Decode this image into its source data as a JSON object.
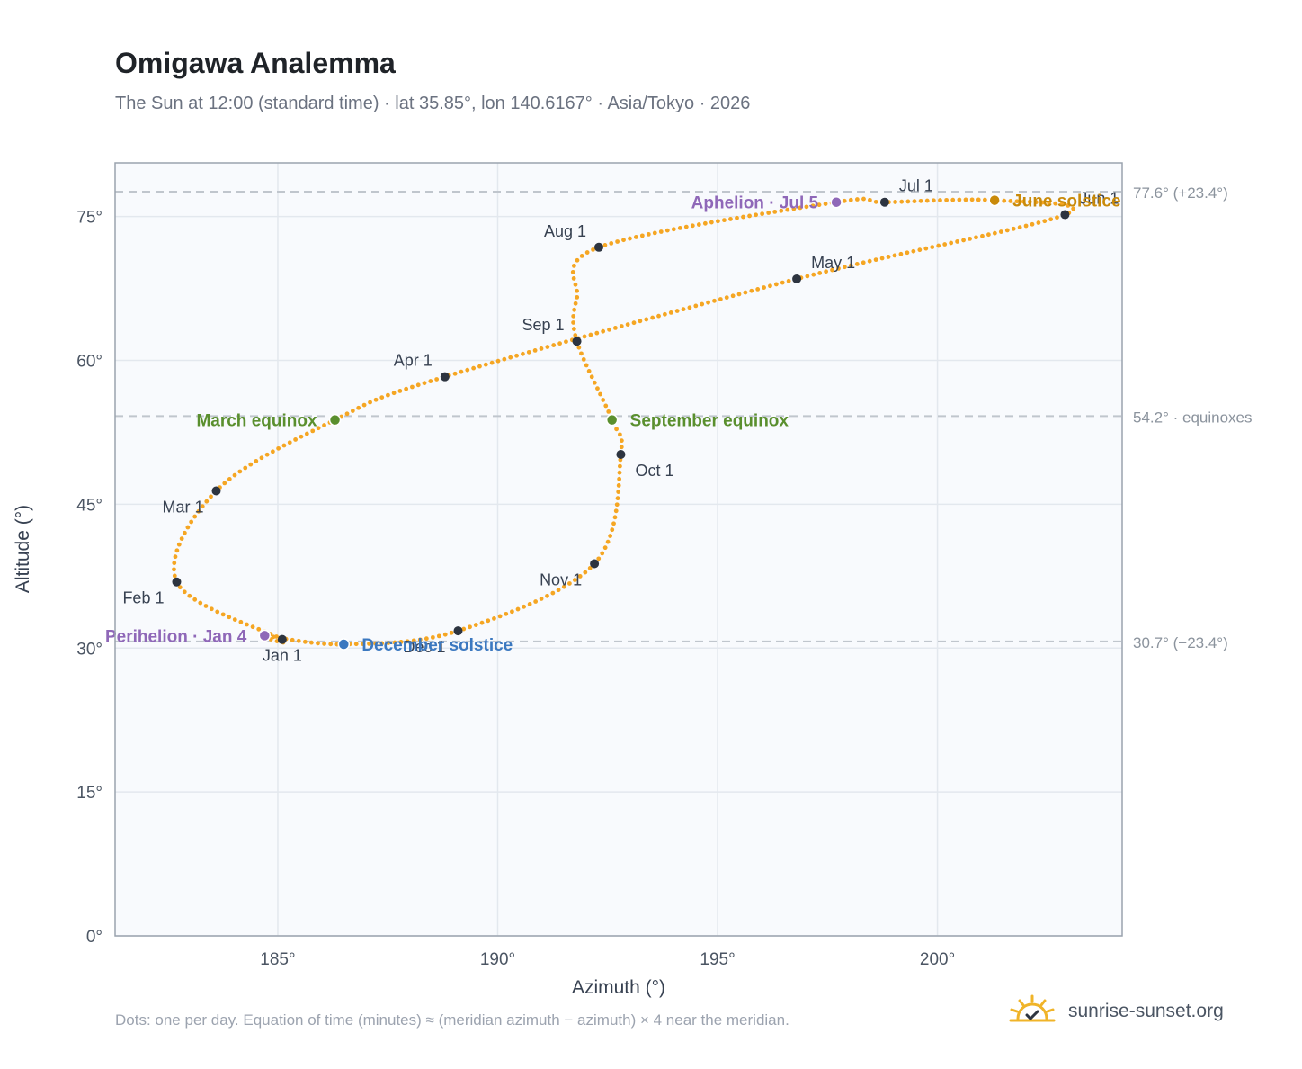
{
  "header": {
    "title": "Omigawa Analemma",
    "subtitle": "The Sun at 12:00 (standard time) · lat 35.85°, lon 140.6167° · Asia/Tokyo · 2026"
  },
  "footer": {
    "note": "Dots: one per day. Equation of time (minutes) ≈ (meridian azimuth − azimuth) × 4 near the meridian.",
    "brand": "sunrise-sunset.org"
  },
  "colors": {
    "path": "#f5a623",
    "month_marker": "#2d3440",
    "equinox": "#5a8f2e",
    "june_solstice": "#c98a0a",
    "december_solstice": "#3b78c0",
    "apsis": "#8f68b8",
    "plot_background": "#f8fafd",
    "grid": "#e3e8ee",
    "reference_line": "#c0c6cd"
  },
  "chart_data": {
    "type": "scatter",
    "xlabel": "Azimuth (°)",
    "ylabel": "Altitude (°)",
    "xlim": [
      181.3,
      204.2
    ],
    "ylim": [
      0,
      80.6
    ],
    "x_ticks": [
      185,
      190,
      195,
      200
    ],
    "y_ticks": [
      0,
      15,
      30,
      45,
      60,
      75
    ],
    "x_tick_labels": [
      "185°",
      "190°",
      "195°",
      "200°"
    ],
    "y_tick_labels": [
      "0°",
      "15°",
      "30°",
      "45°",
      "60°",
      "75°"
    ],
    "grid": true,
    "series": [
      {
        "kind": "daily path",
        "points": [
          [
            185.1,
            30.9
          ],
          [
            182.7,
            36.9
          ],
          [
            183.6,
            46.4
          ],
          [
            186.3,
            53.8
          ],
          [
            188.8,
            58.3
          ],
          [
            196.8,
            68.5
          ],
          [
            202.9,
            75.2
          ],
          [
            201.3,
            76.7
          ],
          [
            198.8,
            76.5
          ],
          [
            197.7,
            76.5
          ],
          [
            192.3,
            71.8
          ],
          [
            191.8,
            66.5
          ],
          [
            191.8,
            62.0
          ],
          [
            192.6,
            53.8
          ],
          [
            192.8,
            50.2
          ],
          [
            192.2,
            38.8
          ],
          [
            189.1,
            31.8
          ],
          [
            186.5,
            30.4
          ],
          [
            184.7,
            31.3
          ],
          [
            185.1,
            30.9
          ]
        ]
      }
    ],
    "month_markers": [
      {
        "label": "Jan 1",
        "x": 185.1,
        "y": 30.9,
        "label_pos": "below"
      },
      {
        "label": "Feb 1",
        "x": 182.7,
        "y": 36.9,
        "label_pos": "below-left"
      },
      {
        "label": "Mar 1",
        "x": 183.6,
        "y": 46.4,
        "label_pos": "below-left"
      },
      {
        "label": "Apr 1",
        "x": 188.8,
        "y": 58.3,
        "label_pos": "above-left"
      },
      {
        "label": "May 1",
        "x": 196.8,
        "y": 68.5,
        "label_pos": "above-right"
      },
      {
        "label": "Jun 1",
        "x": 202.9,
        "y": 75.2,
        "label_pos": "above-right"
      },
      {
        "label": "Jul 1",
        "x": 198.8,
        "y": 76.5,
        "label_pos": "above-right"
      },
      {
        "label": "Aug 1",
        "x": 192.3,
        "y": 71.8,
        "label_pos": "above-left"
      },
      {
        "label": "Sep 1",
        "x": 191.8,
        "y": 62.0,
        "label_pos": "above-left"
      },
      {
        "label": "Oct 1",
        "x": 192.8,
        "y": 50.2,
        "label_pos": "below-right"
      },
      {
        "label": "Nov 1",
        "x": 192.2,
        "y": 38.8,
        "label_pos": "below-left"
      },
      {
        "label": "Dec 1",
        "x": 189.1,
        "y": 31.8,
        "label_pos": "below-left"
      }
    ],
    "events": [
      {
        "label": "March equinox",
        "x": 186.3,
        "y": 53.8,
        "color": "#5a8f2e",
        "label_pos": "left"
      },
      {
        "label": "September equinox",
        "x": 192.6,
        "y": 53.8,
        "color": "#5a8f2e",
        "label_pos": "right"
      },
      {
        "label": "June solstice",
        "x": 201.3,
        "y": 76.7,
        "color": "#c98a0a",
        "label_pos": "right"
      },
      {
        "label": "December solstice",
        "x": 186.5,
        "y": 30.4,
        "color": "#3b78c0",
        "label_pos": "right"
      },
      {
        "label": "Perihelion · Jan 4",
        "x": 184.7,
        "y": 31.3,
        "color": "#8f68b8",
        "label_pos": "left"
      },
      {
        "label": "Aphelion · Jul 5",
        "x": 197.7,
        "y": 76.5,
        "color": "#8f68b8",
        "label_pos": "left"
      }
    ],
    "reference_lines": [
      {
        "y": 77.6,
        "label": "77.6° (+23.4°)"
      },
      {
        "y": 54.2,
        "label": "54.2° · equinoxes"
      },
      {
        "y": 30.7,
        "label": "30.7° (−23.4°)"
      }
    ]
  }
}
